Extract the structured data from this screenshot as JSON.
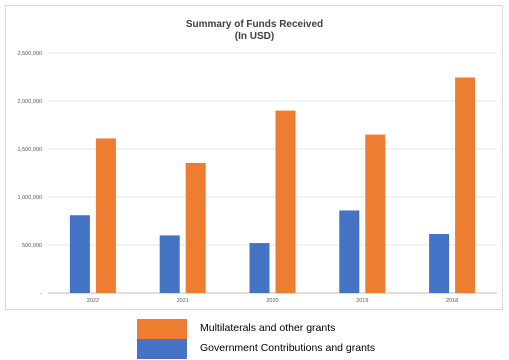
{
  "chart_data": {
    "type": "bar",
    "title": "Summary of Funds Received",
    "subtitle": "(In USD)",
    "categories": [
      "2022",
      "2021",
      "2020",
      "2019",
      "2018"
    ],
    "series": [
      {
        "name": "Government Contributions and grants",
        "color": "#4472c4",
        "values": [
          810000,
          600000,
          520000,
          860000,
          615000
        ]
      },
      {
        "name": "Multilaterals and other grants",
        "color": "#ed7d31",
        "values": [
          1610000,
          1355000,
          1900000,
          1650000,
          2245000
        ]
      }
    ],
    "ylim": [
      0,
      2500000
    ],
    "yticks": [
      0,
      500000,
      1000000,
      1500000,
      2000000,
      2500000
    ],
    "ytick_labels": [
      "-",
      "500,000",
      "1,000,000",
      "1,500,000",
      "2,000,000",
      "2,500,000"
    ],
    "grid": true,
    "legend_position": "bottom"
  },
  "legend": {
    "items": [
      {
        "label": "Multilaterals and other grants",
        "color": "#ed7d31"
      },
      {
        "label": "Government Contributions and grants",
        "color": "#4472c4"
      }
    ]
  }
}
